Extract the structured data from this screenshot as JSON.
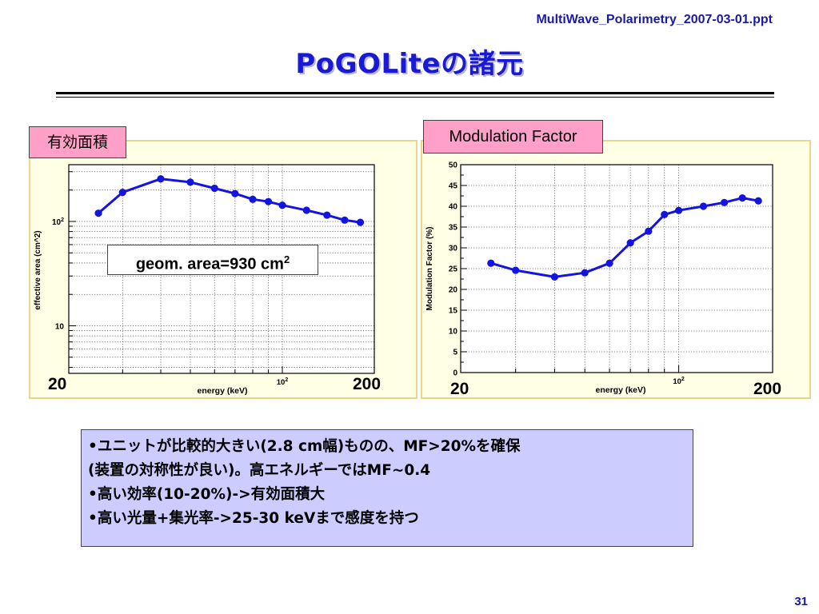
{
  "header": {
    "filename": "MultiWave_Polarimetry_2007-03-01.ppt",
    "title": "PoGOLiteの諸元"
  },
  "panels": {
    "left_tag": "有効面積",
    "right_tag": "Modulation Factor",
    "left_edge_min": "20",
    "left_edge_max": "200",
    "right_edge_min": "20",
    "right_edge_max": "200",
    "geom_text": "geom. area=930 cm",
    "geom_sup": "2"
  },
  "chart_data": [
    {
      "type": "line",
      "xscale": "log",
      "yscale": "log",
      "xlim": [
        20,
        200
      ],
      "ylim": [
        3.5,
        350
      ],
      "xlabel": "energy (keV)",
      "ylabel": "effective area (cm^2)",
      "x_ticklabels": [
        {
          "value": 100,
          "base": "10",
          "exp": "2"
        }
      ],
      "y_ticklabels": [
        {
          "value": 10,
          "text": "10"
        },
        {
          "value": 100,
          "base": "10",
          "exp": "2"
        }
      ],
      "grid": true,
      "series": [
        {
          "color": "#1414e0",
          "x": [
            25,
            30,
            40,
            50,
            60,
            70,
            80,
            90,
            100,
            120,
            140,
            160,
            180
          ],
          "y": [
            120,
            190,
            256,
            238,
            208,
            185,
            163,
            155,
            143,
            128,
            115,
            103,
            98
          ]
        }
      ]
    },
    {
      "type": "line",
      "xscale": "log",
      "yscale": "linear",
      "xlim": [
        20,
        200
      ],
      "ylim": [
        0,
        50
      ],
      "xlabel": "energy (keV)",
      "ylabel": "Modulation Factor (%)",
      "x_ticklabels": [
        {
          "value": 100,
          "base": "10",
          "exp": "2"
        }
      ],
      "y_ticks": [
        0,
        5,
        10,
        15,
        20,
        25,
        30,
        35,
        40,
        45,
        50
      ],
      "grid": true,
      "series": [
        {
          "color": "#1414e0",
          "x": [
            25,
            30,
            40,
            50,
            60,
            70,
            80,
            90,
            100,
            120,
            140,
            160,
            180
          ],
          "y": [
            26.3,
            24.6,
            23.0,
            24.0,
            26.3,
            31.2,
            34.0,
            38.0,
            39.0,
            40.0,
            40.9,
            42.0,
            41.3
          ]
        }
      ]
    }
  ],
  "bullets": [
    "•ユニットが比較的大きい(2.8 cm幅)ものの、MF>20%を確保",
    "(装置の対称性が良い)。高エネルギーではMF~0.4",
    "•高い効率(10-20%)->有効面積大",
    "•高い光量+集光率->25-30 keVまで感度を持つ"
  ],
  "footer": {
    "page_number": "31"
  }
}
